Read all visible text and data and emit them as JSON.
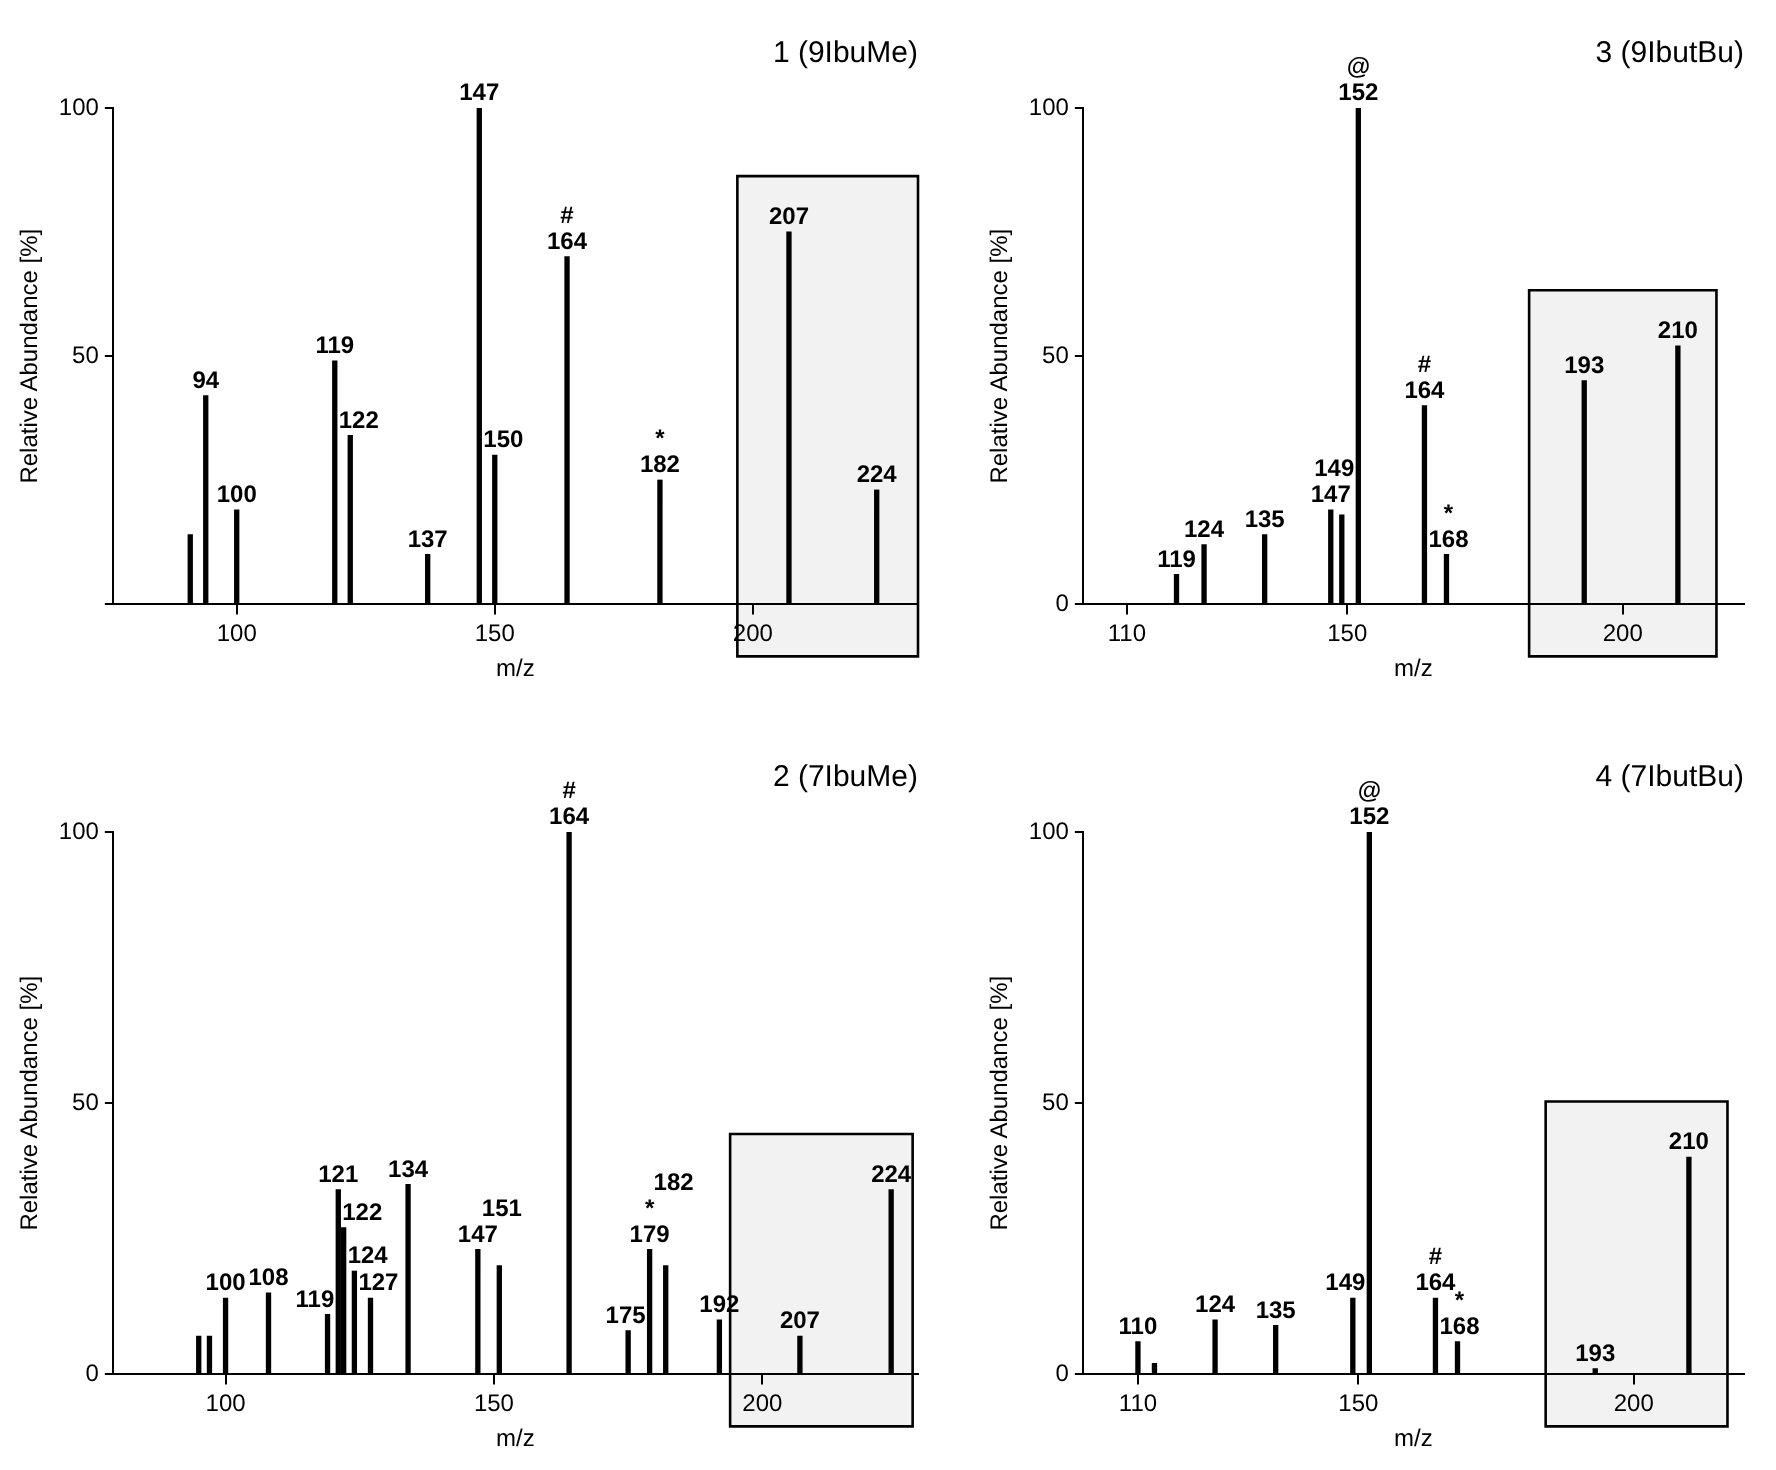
{
  "chart_data": [
    {
      "type": "bar",
      "title": "1 (9IbuMe)",
      "xlabel": "m/z",
      "ylabel": "Relative Abundance [%]",
      "xlim": [
        76,
        232
      ],
      "xticks": [
        100,
        150,
        200
      ],
      "ylim": [
        0,
        100
      ],
      "yticks": [
        {
          "value": 0,
          "label": null
        },
        50,
        100
      ],
      "grid": false,
      "legend": false,
      "series": [
        {
          "color": "#000000",
          "x": [
            91,
            94,
            100,
            119,
            122,
            137,
            147,
            150,
            164,
            182,
            207,
            224
          ],
          "values": [
            14,
            42,
            19,
            49,
            34,
            10,
            100,
            30,
            70,
            25,
            75,
            23
          ]
        }
      ],
      "bands": [
        {
          "axis": "x",
          "from": 197,
          "to": 232,
          "color": "#000000"
        }
      ],
      "annotations": [
        {
          "text": "94",
          "x": 94,
          "y": 42
        },
        {
          "text": "100",
          "x": 100,
          "y": 19
        },
        {
          "text": "119",
          "x": 119,
          "y": 49
        },
        {
          "text": "122",
          "x": 122,
          "y": 34
        },
        {
          "text": "137",
          "x": 137,
          "y": 10
        },
        {
          "text": "147",
          "x": 147,
          "y": 100
        },
        {
          "text": "150",
          "x": 150,
          "y": 30
        },
        {
          "text": "164",
          "x": 164,
          "y": 70
        },
        {
          "text": "#",
          "x": 164,
          "y": 70
        },
        {
          "text": "182",
          "x": 182,
          "y": 25
        },
        {
          "text": "*",
          "x": 182,
          "y": 25
        },
        {
          "text": "207",
          "x": 207,
          "y": 75
        },
        {
          "text": "224",
          "x": 224,
          "y": 23
        }
      ]
    },
    {
      "type": "bar",
      "title": "3 (9IbutBu)",
      "xlabel": "m/z",
      "ylabel": "Relative Abundance [%]",
      "xlim": [
        102,
        222
      ],
      "xticks": [
        110,
        150,
        200
      ],
      "ylim": [
        0,
        100
      ],
      "yticks": [
        0,
        50,
        100
      ],
      "grid": false,
      "legend": false,
      "series": [
        {
          "color": "#000000",
          "x": [
            119,
            124,
            135,
            147,
            149,
            152,
            164,
            168,
            193,
            210
          ],
          "values": [
            6,
            12,
            14,
            19,
            18,
            100,
            40,
            10,
            45,
            52
          ]
        }
      ],
      "bands": [
        {
          "axis": "x",
          "from": 183,
          "to": 217,
          "color": "#000000"
        }
      ],
      "annotations": [
        {
          "text": "119",
          "x": 119,
          "y": 6
        },
        {
          "text": "124",
          "x": 124,
          "y": 12
        },
        {
          "text": "135",
          "x": 135,
          "y": 14
        },
        {
          "text": "147",
          "x": 147,
          "y": 19
        },
        {
          "text": "149",
          "x": 149,
          "y": 18
        },
        {
          "text": "152",
          "x": 152,
          "y": 100
        },
        {
          "text": "@",
          "x": 152,
          "y": 100
        },
        {
          "text": "164",
          "x": 164,
          "y": 40
        },
        {
          "text": "#",
          "x": 164,
          "y": 40
        },
        {
          "text": "168",
          "x": 168,
          "y": 10
        },
        {
          "text": "*",
          "x": 168,
          "y": 10
        },
        {
          "text": "193",
          "x": 193,
          "y": 45
        },
        {
          "text": "210",
          "x": 210,
          "y": 52
        }
      ]
    },
    {
      "type": "bar",
      "title": "2 (7IbuMe)",
      "xlabel": "m/z",
      "ylabel": "Relative Abundance [%]",
      "xlim": [
        79,
        229
      ],
      "xticks": [
        100,
        150,
        200
      ],
      "ylim": [
        0,
        100
      ],
      "yticks": [
        0,
        50,
        100
      ],
      "grid": false,
      "legend": false,
      "series": [
        {
          "color": "#000000",
          "x": [
            95,
            97,
            100,
            108,
            119,
            121,
            122,
            124,
            127,
            134,
            147,
            151,
            164,
            175,
            179,
            182,
            192,
            207,
            224
          ],
          "values": [
            7,
            7,
            14,
            15,
            11,
            34,
            27,
            19,
            14,
            35,
            23,
            20,
            100,
            8,
            23,
            20,
            10,
            7,
            34
          ]
        }
      ],
      "bands": [
        {
          "axis": "x",
          "from": 194,
          "to": 228,
          "color": "#000000"
        }
      ],
      "annotations": [
        {
          "text": "100",
          "x": 100,
          "y": 14
        },
        {
          "text": "108",
          "x": 108,
          "y": 15
        },
        {
          "text": "119",
          "x": 119,
          "y": 11
        },
        {
          "text": "121",
          "x": 121,
          "y": 34
        },
        {
          "text": "122",
          "x": 122,
          "y": 27
        },
        {
          "text": "124",
          "x": 124,
          "y": 19
        },
        {
          "text": "127",
          "x": 127,
          "y": 14
        },
        {
          "text": "134",
          "x": 134,
          "y": 35
        },
        {
          "text": "147",
          "x": 147,
          "y": 23
        },
        {
          "text": "151",
          "x": 151,
          "y": 20
        },
        {
          "text": "164",
          "x": 164,
          "y": 100
        },
        {
          "text": "#",
          "x": 164,
          "y": 100
        },
        {
          "text": "175",
          "x": 175,
          "y": 8
        },
        {
          "text": "179",
          "x": 179,
          "y": 23
        },
        {
          "text": "*",
          "x": 179,
          "y": 23
        },
        {
          "text": "182",
          "x": 182,
          "y": 20
        },
        {
          "text": "192",
          "x": 192,
          "y": 10
        },
        {
          "text": "207",
          "x": 207,
          "y": 7
        },
        {
          "text": "224",
          "x": 224,
          "y": 34
        }
      ]
    },
    {
      "type": "bar",
      "title": "4 (7IbutBu)",
      "xlabel": "m/z",
      "ylabel": "Relative Abundance [%]",
      "xlim": [
        100,
        220
      ],
      "xticks": [
        110,
        150,
        200
      ],
      "ylim": [
        0,
        100
      ],
      "yticks": [
        0,
        50,
        100
      ],
      "grid": false,
      "legend": false,
      "series": [
        {
          "color": "#000000",
          "x": [
            110,
            113,
            124,
            135,
            149,
            152,
            164,
            168,
            193,
            210
          ],
          "values": [
            6,
            2,
            10,
            9,
            14,
            100,
            14,
            6,
            1,
            40
          ]
        }
      ],
      "bands": [
        {
          "axis": "x",
          "from": 184,
          "to": 217,
          "color": "#000000"
        }
      ],
      "annotations": [
        {
          "text": "110",
          "x": 110,
          "y": 6
        },
        {
          "text": "124",
          "x": 124,
          "y": 10
        },
        {
          "text": "135",
          "x": 135,
          "y": 9
        },
        {
          "text": "149",
          "x": 149,
          "y": 14
        },
        {
          "text": "152",
          "x": 152,
          "y": 100
        },
        {
          "text": "@",
          "x": 152,
          "y": 100
        },
        {
          "text": "164",
          "x": 164,
          "y": 14
        },
        {
          "text": "#",
          "x": 164,
          "y": 14
        },
        {
          "text": "168",
          "x": 168,
          "y": 6
        },
        {
          "text": "*",
          "x": 168,
          "y": 6
        },
        {
          "text": "193",
          "x": 193,
          "y": 1
        },
        {
          "text": "210",
          "x": 210,
          "y": 40
        }
      ]
    }
  ]
}
